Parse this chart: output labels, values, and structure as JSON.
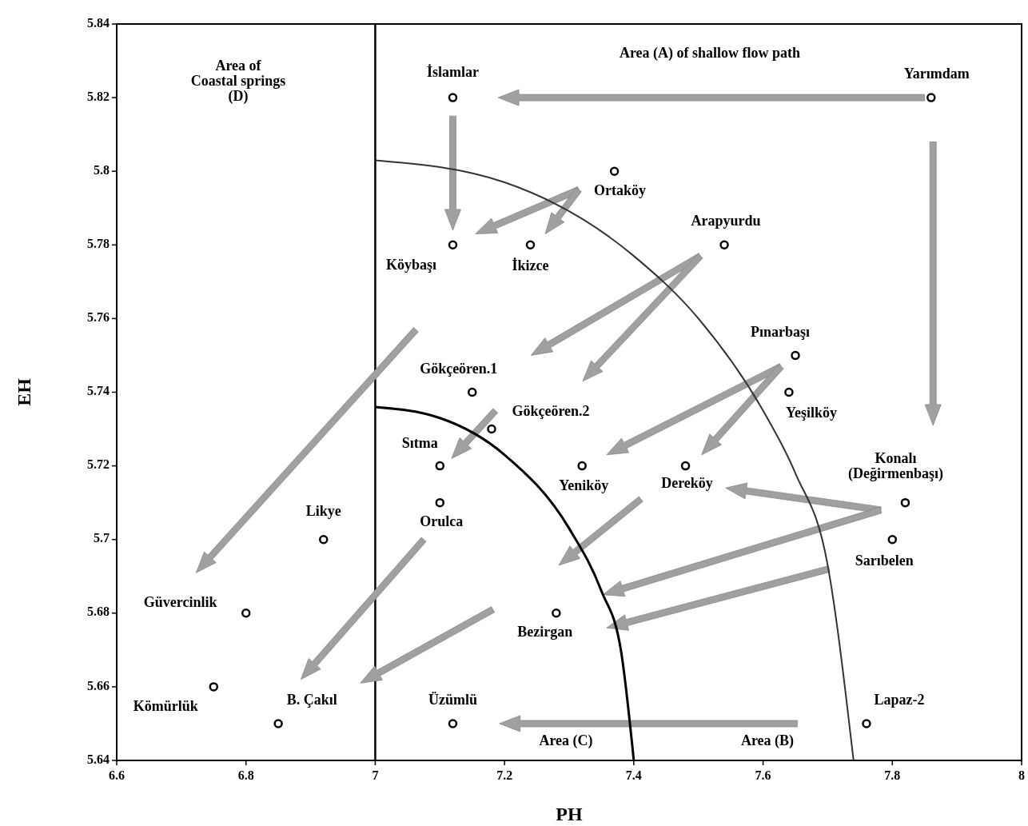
{
  "chart_data": {
    "type": "scatter",
    "xlabel": "PH",
    "ylabel": "EH",
    "xlim": [
      6.6,
      8
    ],
    "xticks": [
      6.6,
      6.8,
      7,
      7.2,
      7.4,
      7.6,
      7.8,
      8
    ],
    "ylim": [
      5.64,
      5.84
    ],
    "yticks": [
      5.64,
      5.66,
      5.68,
      5.7,
      5.72,
      5.74,
      5.76,
      5.78,
      5.8,
      5.82,
      5.84
    ],
    "grid": false,
    "series": [
      {
        "color": "#000000",
        "marker": "circle",
        "x": [
          7.12,
          7.86,
          7.37,
          7.12,
          7.24,
          7.54,
          7.65,
          7.64,
          7.15,
          7.18,
          7.1,
          7.32,
          7.48,
          7.1,
          7.82,
          7.8,
          6.92,
          6.8,
          7.28,
          6.75,
          6.85,
          7.12,
          7.76
        ],
        "values": [
          5.82,
          5.82,
          5.8,
          5.78,
          5.78,
          5.78,
          5.75,
          5.74,
          5.74,
          5.73,
          5.72,
          5.72,
          5.72,
          5.71,
          5.71,
          5.7,
          5.7,
          5.68,
          5.68,
          5.66,
          5.65,
          5.65,
          5.65
        ]
      },
      {
        "type": "line",
        "color": "#000000",
        "x": [
          7.0,
          7.1,
          7.2,
          7.3,
          7.35,
          7.38,
          7.4
        ],
        "values": [
          5.736,
          5.733,
          5.723,
          5.703,
          5.686,
          5.67,
          5.64
        ]
      },
      {
        "type": "line",
        "color": "#333333",
        "x": [
          7.0,
          7.2,
          7.4,
          7.5,
          7.6,
          7.65,
          7.7,
          7.74
        ],
        "values": [
          5.803,
          5.797,
          5.777,
          5.76,
          5.735,
          5.718,
          5.693,
          5.64
        ]
      }
    ],
    "ref_lines": [
      {
        "axis": "x",
        "value": 7,
        "color": "#000000"
      }
    ],
    "annotations": [
      {
        "text": "İslamlar",
        "x": 7.12,
        "y": 5.82
      },
      {
        "text": "Yarımdam",
        "x": 7.86,
        "y": 5.82
      },
      {
        "text": "Ortaköy",
        "x": 7.37,
        "y": 5.8
      },
      {
        "text": "Köybaşı",
        "x": 7.12,
        "y": 5.78
      },
      {
        "text": "İkizce",
        "x": 7.24,
        "y": 5.78
      },
      {
        "text": "Arapyurdu",
        "x": 7.54,
        "y": 5.78
      },
      {
        "text": "Pınarbaşı",
        "x": 7.65,
        "y": 5.75
      },
      {
        "text": "Yeşilköy",
        "x": 7.64,
        "y": 5.74
      },
      {
        "text": "Gökçeören.1",
        "x": 7.15,
        "y": 5.74
      },
      {
        "text": "Gökçeören.2",
        "x": 7.18,
        "y": 5.73
      },
      {
        "text": "Sıtma",
        "x": 7.1,
        "y": 5.72
      },
      {
        "text": "Yeniköy",
        "x": 7.32,
        "y": 5.72
      },
      {
        "text": "Dereköy",
        "x": 7.48,
        "y": 5.72
      },
      {
        "text": "Orulca",
        "x": 7.1,
        "y": 5.71
      },
      {
        "text": "Konalı\n(Değirmenbaşı)",
        "x": 7.82,
        "y": 5.71
      },
      {
        "text": "Sarıbelen",
        "x": 7.8,
        "y": 5.7
      },
      {
        "text": "Likye",
        "x": 6.92,
        "y": 5.7
      },
      {
        "text": "Güvercinlik",
        "x": 6.8,
        "y": 5.68
      },
      {
        "text": "Bezirgan",
        "x": 7.28,
        "y": 5.68
      },
      {
        "text": "Kömürlük",
        "x": 6.75,
        "y": 5.66
      },
      {
        "text": "B. Çakıl",
        "x": 6.85,
        "y": 5.65
      },
      {
        "text": "Üzümlü",
        "x": 7.12,
        "y": 5.65
      },
      {
        "text": "Lapaz-2",
        "x": 7.76,
        "y": 5.65
      },
      "Area (A) of shallow flow path",
      "Area of\nCoastal springs\n(D)",
      "Area (C)",
      "Area (B)"
    ]
  }
}
